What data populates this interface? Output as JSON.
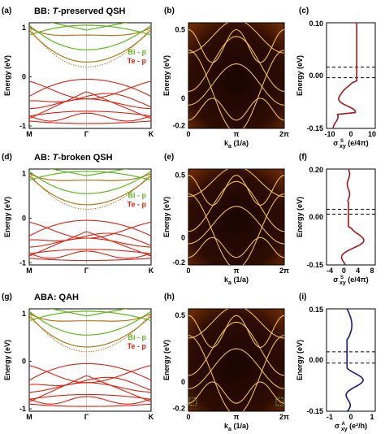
{
  "figure": {
    "rows": [
      {
        "bands": {
          "label": "(a)",
          "title_prefix": "BB: ",
          "title_t": "T",
          "title_suffix": "-preserved QSH",
          "y_ticks": [
            "1",
            "0",
            "-1"
          ],
          "x_ticks": [
            "M",
            "Γ",
            "K"
          ],
          "ylabel": "Energy (eV)",
          "legend": [
            "Bi - p",
            "Te - p"
          ]
        },
        "edge": {
          "label": "(b)",
          "y_ticks": [
            "0.5",
            "0",
            "-0.2"
          ],
          "x_ticks": [
            "0",
            "π",
            "2π"
          ],
          "ylabel": "Energy (eV)",
          "xlabel_main": "k",
          "xlabel_sub": "a",
          "xlabel_unit": " (1/a)"
        },
        "cond": {
          "label": "(c)",
          "y_ticks": [
            "0.10",
            "0.00",
            "-0.15"
          ],
          "x_ticks": [
            "-10",
            "0",
            "10"
          ],
          "ylabel": "Energy (eV)",
          "xlabel_main": "σ ",
          "xlabel_sup": "S",
          "xlabel_sub": "xy",
          "xlabel_unit": " (e/4π)"
        }
      },
      {
        "bands": {
          "label": "(d)",
          "title_prefix": "AB: ",
          "title_t": "T",
          "title_suffix": "-broken QSH",
          "y_ticks": [
            "1",
            "0",
            "-1"
          ],
          "x_ticks": [
            "M",
            "Γ",
            "K"
          ],
          "ylabel": "Energy (eV)",
          "legend": [
            "Bi - p",
            "Te - p"
          ]
        },
        "edge": {
          "label": "(e)",
          "y_ticks": [
            "0.5",
            "0",
            "-0.2"
          ],
          "x_ticks": [
            "0",
            "π",
            "2π"
          ],
          "ylabel": "Energy (eV)",
          "xlabel_main": "k",
          "xlabel_sub": "a",
          "xlabel_unit": " (1/a)"
        },
        "cond": {
          "label": "(f)",
          "y_ticks": [
            "0.20",
            "0.00",
            "-0.15"
          ],
          "x_ticks": [
            "-4",
            "0",
            "4",
            "8"
          ],
          "ylabel": "Energy (eV)",
          "xlabel_main": "σ ",
          "xlabel_sup": "S",
          "xlabel_sub": "xy",
          "xlabel_unit": " (e/4π)"
        }
      },
      {
        "bands": {
          "label": "(g)",
          "title_prefix": "ABA: QAH",
          "title_t": "",
          "title_suffix": "",
          "y_ticks": [
            "1",
            "0",
            "-1"
          ],
          "x_ticks": [
            "M",
            "Γ",
            "K"
          ],
          "ylabel": "Energy (eV)",
          "legend": [
            "Bi - p",
            "Te - p"
          ]
        },
        "edge": {
          "label": "(h)",
          "y_ticks": [
            "0.5",
            "0",
            "-0.2"
          ],
          "x_ticks": [
            "0",
            "π",
            "2π"
          ],
          "ylabel": "Energy (eV)",
          "xlabel_main": "k",
          "xlabel_sub": "a",
          "xlabel_unit": " (1/a)"
        },
        "cond": {
          "label": "(i)",
          "y_ticks": [
            "0.15",
            "0.00",
            "-0.15"
          ],
          "x_ticks": [
            "-1",
            "0",
            "1"
          ],
          "ylabel": "Energy (eV)",
          "xlabel_main": "σ ",
          "xlabel_sup": "A",
          "xlabel_sub": "xy",
          "xlabel_unit": " (e²/h)"
        }
      }
    ],
    "colors": {
      "bi": "#5fb81e",
      "te": "#e02010",
      "mix": "#b07818",
      "edge_bg": "#2a0a02",
      "edge_line": "#ffd060",
      "cond_red": "#a01818",
      "cond_blue": "#1a1a80"
    }
  }
}
